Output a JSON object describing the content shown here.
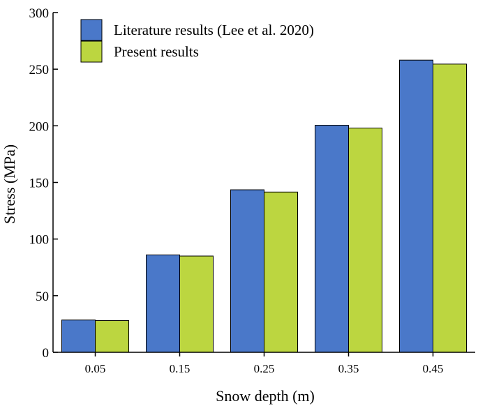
{
  "chart_data": {
    "type": "bar",
    "title": "",
    "xlabel": "Snow depth (m)",
    "ylabel": "Stress (MPa)",
    "categories": [
      "0.05",
      "0.15",
      "0.25",
      "0.35",
      "0.45"
    ],
    "ylim": [
      0,
      300
    ],
    "yticks": [
      "0",
      "50",
      "100",
      "150",
      "200",
      "250",
      "300"
    ],
    "grid": false,
    "legend_position": "top-left",
    "series": [
      {
        "name": "Literature results (Lee et al. 2020)",
        "color": "#4a78c9",
        "values": [
          28.5,
          86,
          143.5,
          200.5,
          258
        ]
      },
      {
        "name": "Present results",
        "color": "#bcd640",
        "values": [
          28,
          85,
          141.5,
          198,
          254.5
        ]
      }
    ]
  }
}
